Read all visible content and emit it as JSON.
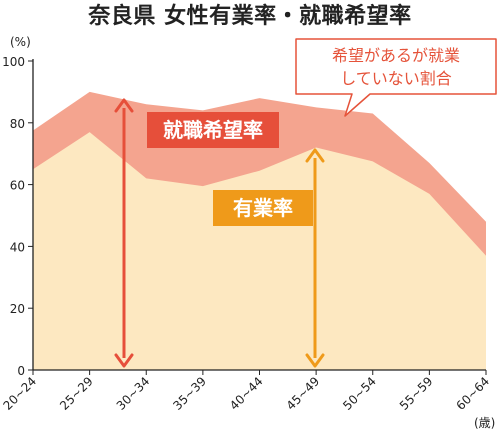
{
  "chart_data": {
    "type": "area",
    "title": "奈良県 女性有業率・就職希望率",
    "y_unit": "(%)",
    "x_unit": "(歳)",
    "categories": [
      "20~24",
      "25~29",
      "30~34",
      "35~39",
      "40~44",
      "45~49",
      "50~54",
      "55~59",
      "60~64"
    ],
    "ylim": [
      0,
      100
    ],
    "yticks": [
      0,
      20,
      40,
      60,
      80,
      100
    ],
    "grid": false,
    "series": [
      {
        "name": "就職希望率",
        "values": [
          77.5,
          90,
          86,
          84,
          88,
          85,
          83,
          67,
          48
        ],
        "color": "#f4a48f"
      },
      {
        "name": "有業率",
        "values": [
          65,
          77,
          62,
          59.5,
          64.5,
          72,
          67.5,
          57,
          37
        ],
        "color": "#fde8c1"
      }
    ],
    "annotations": {
      "seeking_label": "就職希望率",
      "employed_label": "有業率",
      "callout_line1": "希望があるが就業",
      "callout_line2": "していない割合"
    },
    "colors": {
      "seeking_box": "#e64f3a",
      "employed_box": "#ef9a1a",
      "seeking_arrow": "#e64f3a",
      "employed_arrow": "#ef9a1a",
      "callout_border": "#e5533a"
    }
  }
}
